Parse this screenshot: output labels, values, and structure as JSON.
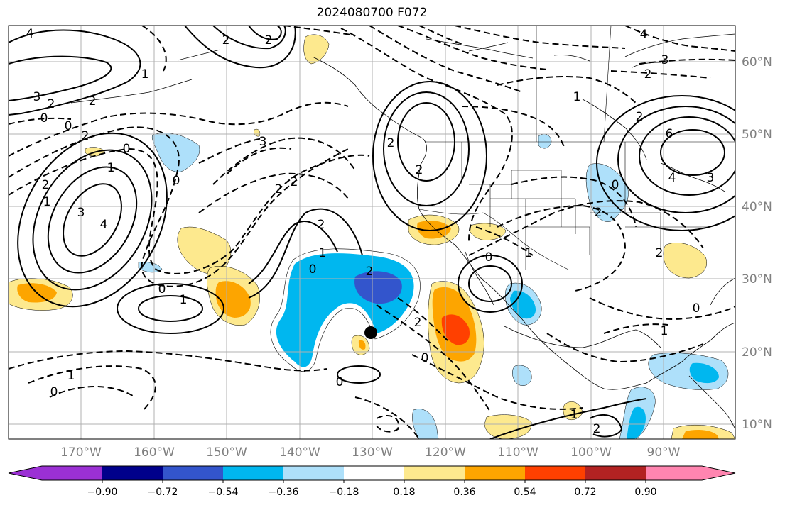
{
  "title": "2024080700 F072",
  "lon_labels": [
    "170°W",
    "160°W",
    "150°W",
    "140°W",
    "130°W",
    "120°W",
    "110°W",
    "100°W",
    "90°W"
  ],
  "lat_labels": [
    "60°N",
    "50°N",
    "40°N",
    "30°N",
    "20°N",
    "10°N"
  ],
  "colorbar": {
    "ticks": [
      "−0.90",
      "−0.72",
      "−0.54",
      "−0.36",
      "−0.18",
      "0.18",
      "0.36",
      "0.54",
      "0.72",
      "0.90"
    ],
    "colors": [
      "#9b30d4",
      "#00008b",
      "#3355cc",
      "#00b7ef",
      "#aee0fa",
      "#ffffff",
      "#fde98e",
      "#fda500",
      "#ff4000",
      "#b22222",
      "#ff85b0"
    ]
  },
  "contour_labels": [
    {
      "text": "4"
    },
    {
      "text": "2"
    },
    {
      "text": "2"
    },
    {
      "text": "3"
    },
    {
      "text": "2"
    },
    {
      "text": "2"
    },
    {
      "text": "0"
    },
    {
      "text": "2"
    },
    {
      "text": "3"
    },
    {
      "text": "2"
    },
    {
      "text": "2"
    },
    {
      "text": "1"
    },
    {
      "text": "3"
    },
    {
      "text": "4"
    },
    {
      "text": "0"
    },
    {
      "text": "1"
    },
    {
      "text": "0"
    },
    {
      "text": "2"
    },
    {
      "text": "2"
    },
    {
      "text": "2"
    },
    {
      "text": "0"
    },
    {
      "text": "1"
    },
    {
      "text": "2"
    },
    {
      "text": "1"
    },
    {
      "text": "0"
    },
    {
      "text": "0"
    },
    {
      "text": "2"
    },
    {
      "text": "6"
    },
    {
      "text": "4"
    },
    {
      "text": "3"
    },
    {
      "text": "2"
    },
    {
      "text": "3"
    },
    {
      "text": "4"
    },
    {
      "text": "0"
    },
    {
      "text": "2"
    },
    {
      "text": "1"
    },
    {
      "text": "2"
    },
    {
      "text": "0"
    },
    {
      "text": "1"
    },
    {
      "text": "0"
    },
    {
      "text": "1"
    },
    {
      "text": "2"
    },
    {
      "text": "0"
    },
    {
      "text": "1"
    },
    {
      "text": "1"
    },
    {
      "text": "0"
    },
    {
      "text": "2"
    },
    {
      "text": "1"
    },
    {
      "text": "0"
    },
    {
      "text": "2"
    }
  ]
}
